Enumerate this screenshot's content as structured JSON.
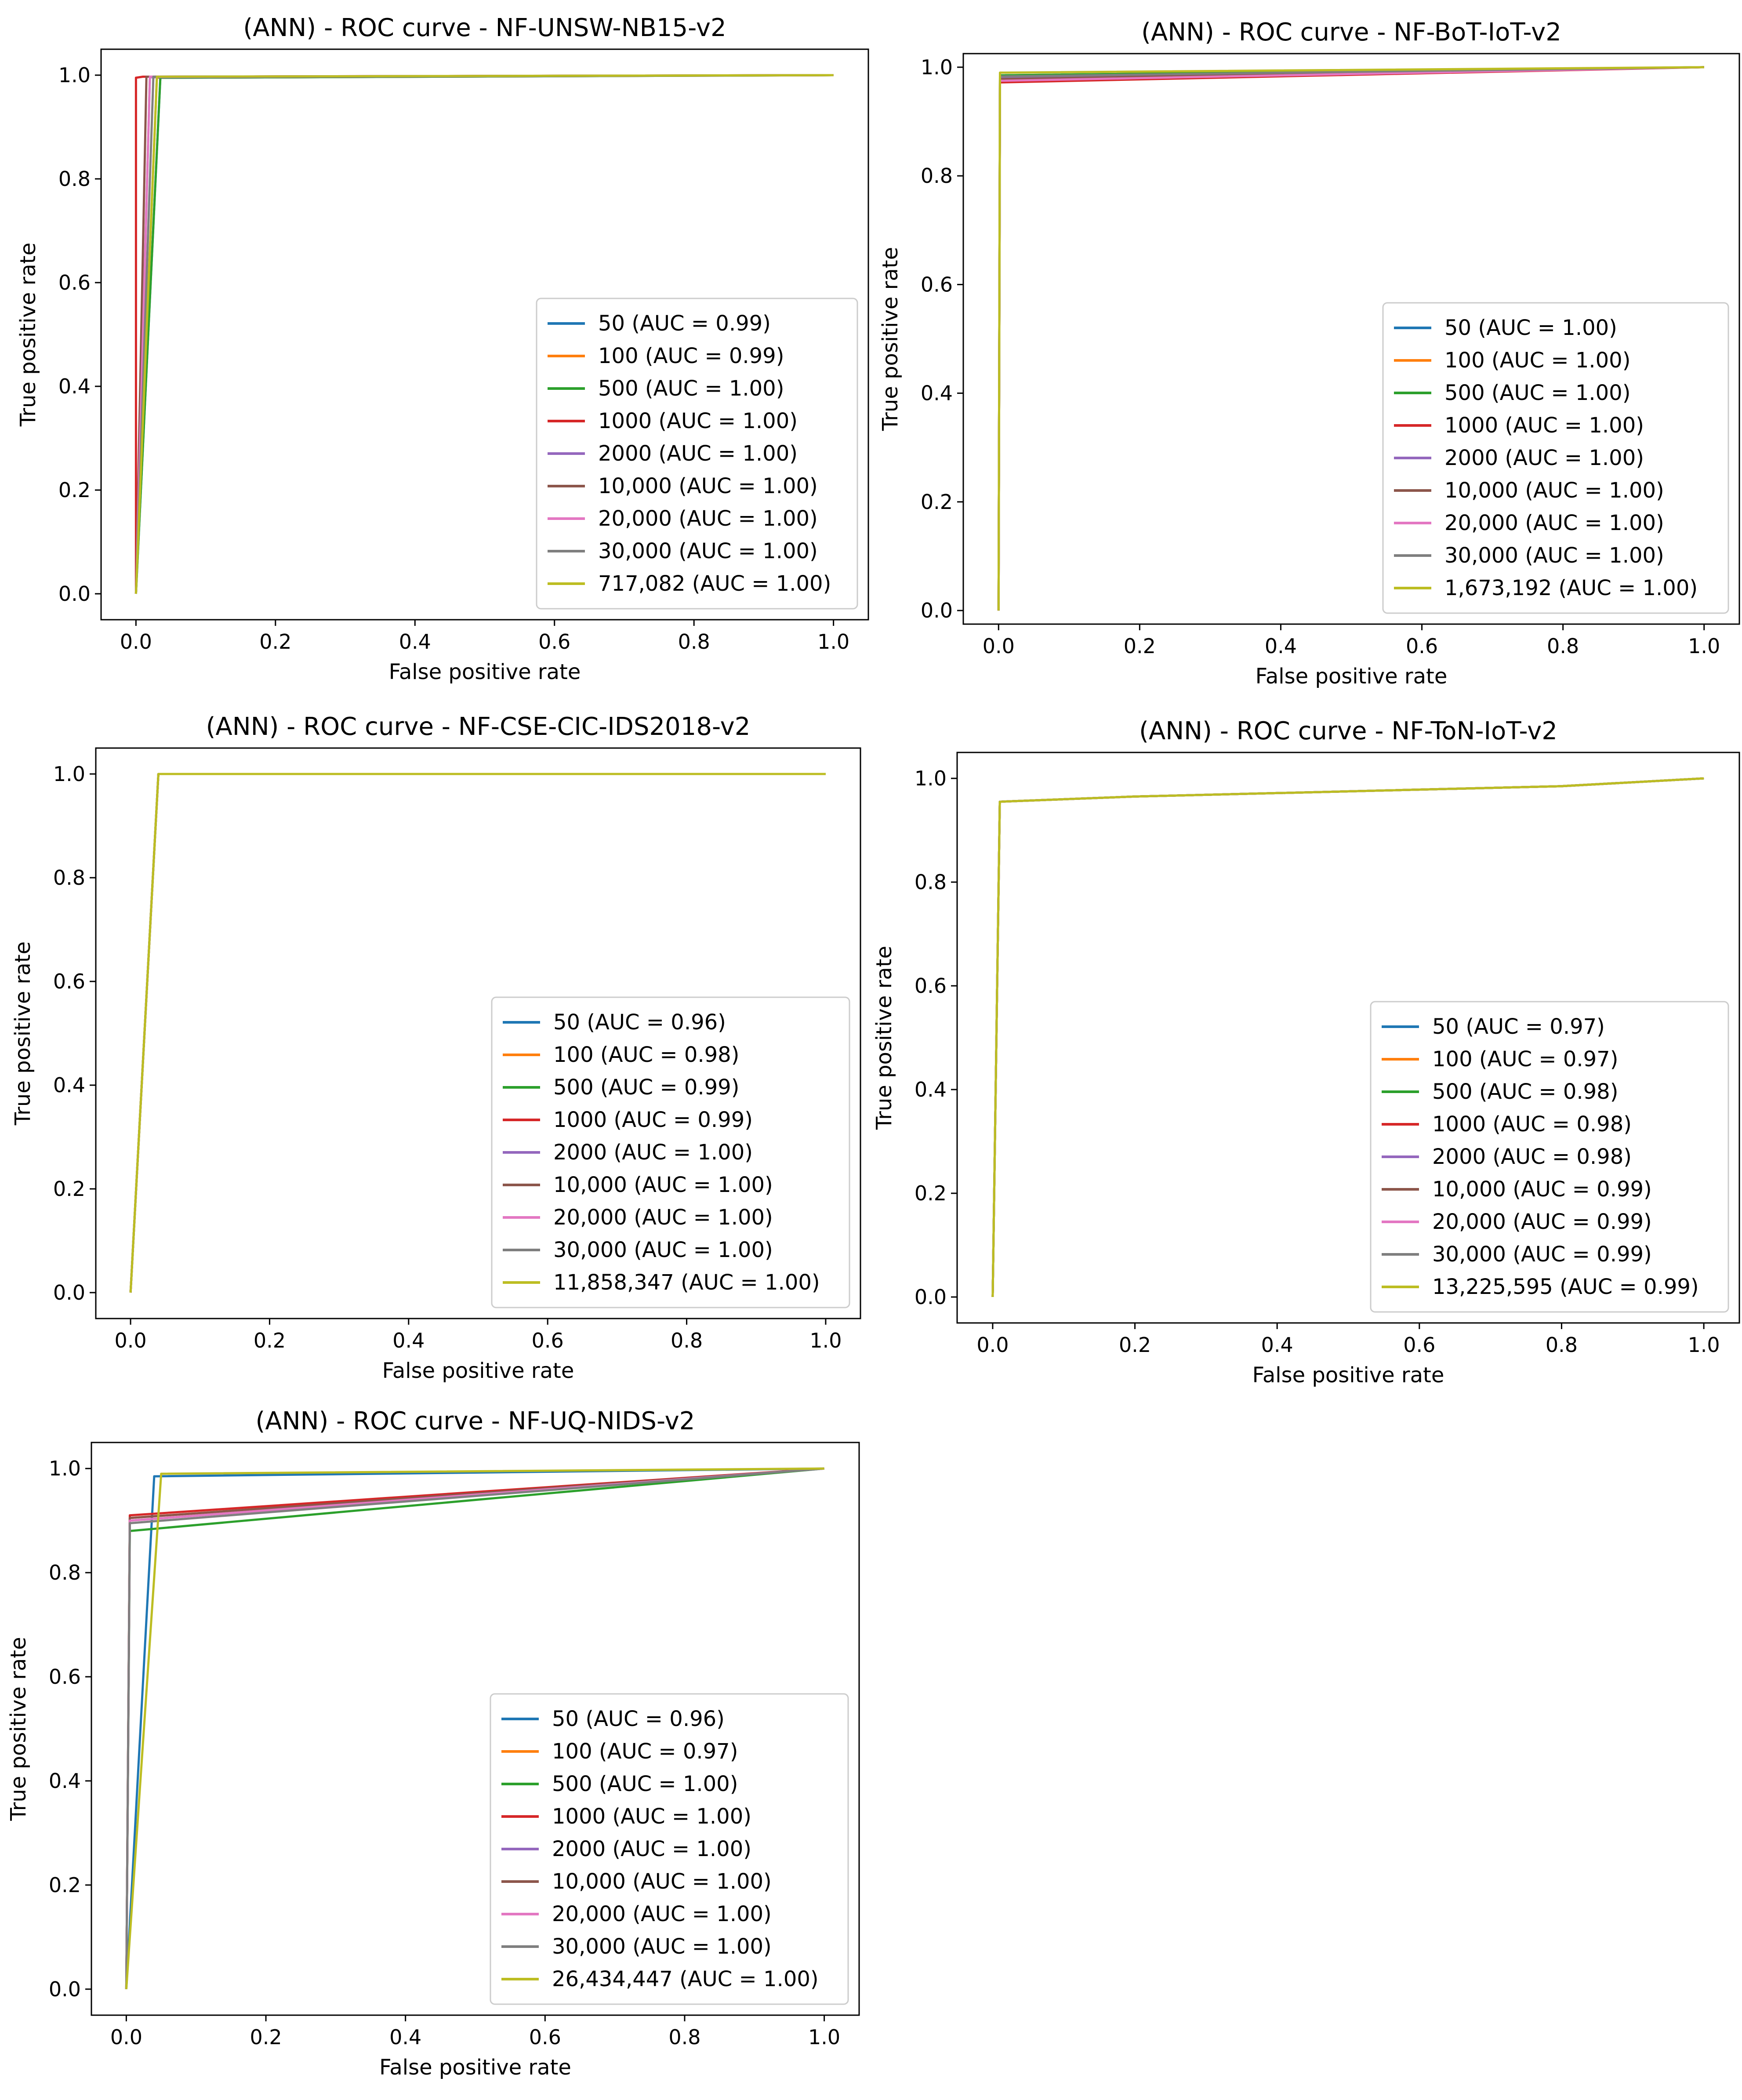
{
  "series_colors": [
    "#1f77b4",
    "#ff7f0e",
    "#2ca02c",
    "#d62728",
    "#9467bd",
    "#8c564b",
    "#e377c2",
    "#7f7f7f",
    "#bcbd22"
  ],
  "chart_data": [
    {
      "type": "line",
      "title": "(ANN) - ROC curve - NF-UNSW-NB15-v2",
      "xlabel": "False positive rate",
      "ylabel": "True positive rate",
      "xlim": [
        -0.05,
        1.05
      ],
      "ylim": [
        -0.05,
        1.05
      ],
      "xticks": [
        "0.0",
        "0.2",
        "0.4",
        "0.6",
        "0.8",
        "1.0"
      ],
      "yticks": [
        "0.0",
        "0.2",
        "0.4",
        "0.6",
        "0.8",
        "1.0"
      ],
      "legend_position": "lower-right",
      "series": [
        {
          "name": "50 (AUC = 0.99)",
          "x": [
            0,
            0.035,
            1.0
          ],
          "y": [
            0,
            0.995,
            1.0
          ]
        },
        {
          "name": "100 (AUC = 0.99)",
          "x": [
            0,
            0.03,
            1.0
          ],
          "y": [
            0,
            0.995,
            1.0
          ]
        },
        {
          "name": "500 (AUC = 1.00)",
          "x": [
            0,
            0.035,
            1.0
          ],
          "y": [
            0,
            0.995,
            1.0
          ]
        },
        {
          "name": "1000 (AUC = 1.00)",
          "x": [
            0,
            0.0,
            0.01,
            1.0
          ],
          "y": [
            0,
            0.995,
            0.997,
            1.0
          ]
        },
        {
          "name": "2000 (AUC = 1.00)",
          "x": [
            0,
            0.02,
            1.0
          ],
          "y": [
            0,
            0.996,
            1.0
          ]
        },
        {
          "name": "10,000 (AUC = 1.00)",
          "x": [
            0,
            0.015,
            1.0
          ],
          "y": [
            0,
            0.997,
            1.0
          ]
        },
        {
          "name": "20,000 (AUC = 1.00)",
          "x": [
            0,
            0.02,
            1.0
          ],
          "y": [
            0,
            0.997,
            1.0
          ]
        },
        {
          "name": "30,000 (AUC = 1.00)",
          "x": [
            0,
            0.025,
            1.0
          ],
          "y": [
            0,
            0.997,
            1.0
          ]
        },
        {
          "name": "717,082 (AUC = 1.00)",
          "x": [
            0,
            0.03,
            1.0
          ],
          "y": [
            0,
            0.997,
            1.0
          ]
        }
      ]
    },
    {
      "type": "line",
      "title": "(ANN) - ROC curve - NF-BoT-IoT-v2",
      "xlabel": "False positive rate",
      "ylabel": "True positive rate",
      "xlim": [
        -0.05,
        1.05
      ],
      "ylim": [
        -0.025,
        1.025
      ],
      "xticks": [
        "0.0",
        "0.2",
        "0.4",
        "0.6",
        "0.8",
        "1.0"
      ],
      "yticks": [
        "0.0",
        "0.2",
        "0.4",
        "0.6",
        "0.8",
        "1.0"
      ],
      "legend_position": "lower-right",
      "series": [
        {
          "name": "50 (AUC = 1.00)",
          "x": [
            0,
            0.002,
            1.0
          ],
          "y": [
            0,
            0.985,
            1.0
          ]
        },
        {
          "name": "100 (AUC = 1.00)",
          "x": [
            0,
            0.002,
            1.0
          ],
          "y": [
            0,
            0.98,
            1.0
          ]
        },
        {
          "name": "500 (AUC = 1.00)",
          "x": [
            0,
            0.002,
            1.0
          ],
          "y": [
            0,
            0.985,
            1.0
          ]
        },
        {
          "name": "1000 (AUC = 1.00)",
          "x": [
            0,
            0.002,
            1.0
          ],
          "y": [
            0,
            0.972,
            1.0
          ]
        },
        {
          "name": "2000 (AUC = 1.00)",
          "x": [
            0,
            0.002,
            1.0
          ],
          "y": [
            0,
            0.982,
            1.0
          ]
        },
        {
          "name": "10,000 (AUC = 1.00)",
          "x": [
            0,
            0.002,
            1.0
          ],
          "y": [
            0,
            0.978,
            1.0
          ]
        },
        {
          "name": "20,000 (AUC = 1.00)",
          "x": [
            0,
            0.002,
            1.0
          ],
          "y": [
            0,
            0.975,
            1.0
          ]
        },
        {
          "name": "30,000 (AUC = 1.00)",
          "x": [
            0,
            0.002,
            1.0
          ],
          "y": [
            0,
            0.983,
            1.0
          ]
        },
        {
          "name": "1,673,192 (AUC = 1.00)",
          "x": [
            0,
            0.002,
            1.0
          ],
          "y": [
            0,
            0.99,
            1.0
          ]
        }
      ]
    },
    {
      "type": "line",
      "title": "(ANN) - ROC curve - NF-CSE-CIC-IDS2018-v2",
      "xlabel": "False positive rate",
      "ylabel": "True positive rate",
      "xlim": [
        -0.05,
        1.05
      ],
      "ylim": [
        -0.05,
        1.05
      ],
      "xticks": [
        "0.0",
        "0.2",
        "0.4",
        "0.6",
        "0.8",
        "1.0"
      ],
      "yticks": [
        "0.0",
        "0.2",
        "0.4",
        "0.6",
        "0.8",
        "1.0"
      ],
      "legend_position": "lower-right",
      "series": [
        {
          "name": "50 (AUC = 0.96)",
          "x": [
            0,
            0.04,
            1.0
          ],
          "y": [
            0,
            1.0,
            1.0
          ]
        },
        {
          "name": "100 (AUC = 0.98)",
          "x": [
            0,
            0.04,
            1.0
          ],
          "y": [
            0,
            1.0,
            1.0
          ]
        },
        {
          "name": "500 (AUC = 0.99)",
          "x": [
            0,
            0.04,
            1.0
          ],
          "y": [
            0,
            1.0,
            1.0
          ]
        },
        {
          "name": "1000 (AUC = 0.99)",
          "x": [
            0,
            0.04,
            1.0
          ],
          "y": [
            0,
            1.0,
            1.0
          ]
        },
        {
          "name": "2000 (AUC = 1.00)",
          "x": [
            0,
            0.04,
            1.0
          ],
          "y": [
            0,
            1.0,
            1.0
          ]
        },
        {
          "name": "10,000 (AUC = 1.00)",
          "x": [
            0,
            0.04,
            1.0
          ],
          "y": [
            0,
            1.0,
            1.0
          ]
        },
        {
          "name": "20,000 (AUC = 1.00)",
          "x": [
            0,
            0.04,
            1.0
          ],
          "y": [
            0,
            1.0,
            1.0
          ]
        },
        {
          "name": "30,000 (AUC = 1.00)",
          "x": [
            0,
            0.04,
            1.0
          ],
          "y": [
            0,
            1.0,
            1.0
          ]
        },
        {
          "name": "11,858,347 (AUC = 1.00)",
          "x": [
            0,
            0.04,
            1.0
          ],
          "y": [
            0,
            1.0,
            1.0
          ]
        }
      ]
    },
    {
      "type": "line",
      "title": "(ANN) - ROC curve - NF-ToN-IoT-v2",
      "xlabel": "False positive rate",
      "ylabel": "True positive rate",
      "xlim": [
        -0.05,
        1.05
      ],
      "ylim": [
        -0.05,
        1.05
      ],
      "xticks": [
        "0.0",
        "0.2",
        "0.4",
        "0.6",
        "0.8",
        "1.0"
      ],
      "yticks": [
        "0.0",
        "0.2",
        "0.4",
        "0.6",
        "0.8",
        "1.0"
      ],
      "legend_position": "lower-right",
      "series": [
        {
          "name": "50 (AUC = 0.97)",
          "x": [
            0,
            0.01,
            0.2,
            0.5,
            0.8,
            1.0
          ],
          "y": [
            0,
            0.955,
            0.965,
            0.975,
            0.985,
            1.0
          ]
        },
        {
          "name": "100 (AUC = 0.97)",
          "x": [
            0,
            0.01,
            0.2,
            0.5,
            0.8,
            1.0
          ],
          "y": [
            0,
            0.955,
            0.965,
            0.975,
            0.985,
            1.0
          ]
        },
        {
          "name": "500 (AUC = 0.98)",
          "x": [
            0,
            0.01,
            0.2,
            0.5,
            0.8,
            1.0
          ],
          "y": [
            0,
            0.955,
            0.965,
            0.975,
            0.985,
            1.0
          ]
        },
        {
          "name": "1000 (AUC = 0.98)",
          "x": [
            0,
            0.01,
            0.2,
            0.5,
            0.8,
            1.0
          ],
          "y": [
            0,
            0.955,
            0.965,
            0.975,
            0.985,
            1.0
          ]
        },
        {
          "name": "2000 (AUC = 0.98)",
          "x": [
            0,
            0.01,
            0.2,
            0.5,
            0.8,
            1.0
          ],
          "y": [
            0,
            0.955,
            0.965,
            0.975,
            0.985,
            1.0
          ]
        },
        {
          "name": "10,000 (AUC = 0.99)",
          "x": [
            0,
            0.01,
            0.2,
            0.5,
            0.8,
            1.0
          ],
          "y": [
            0,
            0.955,
            0.965,
            0.975,
            0.985,
            1.0
          ]
        },
        {
          "name": "20,000 (AUC = 0.99)",
          "x": [
            0,
            0.01,
            0.2,
            0.5,
            0.8,
            1.0
          ],
          "y": [
            0,
            0.955,
            0.965,
            0.975,
            0.985,
            1.0
          ]
        },
        {
          "name": "30,000 (AUC = 0.99)",
          "x": [
            0,
            0.01,
            0.2,
            0.5,
            0.8,
            1.0
          ],
          "y": [
            0,
            0.955,
            0.965,
            0.975,
            0.985,
            1.0
          ]
        },
        {
          "name": "13,225,595 (AUC = 0.99)",
          "x": [
            0,
            0.01,
            0.2,
            0.5,
            0.8,
            1.0
          ],
          "y": [
            0,
            0.955,
            0.965,
            0.975,
            0.985,
            1.0
          ]
        }
      ]
    },
    {
      "type": "line",
      "title": "(ANN) - ROC curve - NF-UQ-NIDS-v2",
      "xlabel": "False positive rate",
      "ylabel": "True positive rate",
      "xlim": [
        -0.05,
        1.05
      ],
      "ylim": [
        -0.05,
        1.05
      ],
      "xticks": [
        "0.0",
        "0.2",
        "0.4",
        "0.6",
        "0.8",
        "1.0"
      ],
      "yticks": [
        "0.0",
        "0.2",
        "0.4",
        "0.6",
        "0.8",
        "1.0"
      ],
      "legend_position": "lower-right",
      "series": [
        {
          "name": "50 (AUC = 0.96)",
          "x": [
            0,
            0.04,
            1.0
          ],
          "y": [
            0,
            0.985,
            1.0
          ]
        },
        {
          "name": "100 (AUC = 0.97)",
          "x": [
            0,
            0.005,
            1.0
          ],
          "y": [
            0,
            0.905,
            1.0
          ]
        },
        {
          "name": "500 (AUC = 1.00)",
          "x": [
            0,
            0.005,
            1.0
          ],
          "y": [
            0,
            0.88,
            1.0
          ]
        },
        {
          "name": "1000 (AUC = 1.00)",
          "x": [
            0,
            0.005,
            1.0
          ],
          "y": [
            0,
            0.91,
            1.0
          ]
        },
        {
          "name": "2000 (AUC = 1.00)",
          "x": [
            0,
            0.005,
            1.0
          ],
          "y": [
            0,
            0.9,
            1.0
          ]
        },
        {
          "name": "10,000 (AUC = 1.00)",
          "x": [
            0,
            0.005,
            1.0
          ],
          "y": [
            0,
            0.905,
            1.0
          ]
        },
        {
          "name": "20,000 (AUC = 1.00)",
          "x": [
            0,
            0.005,
            1.0
          ],
          "y": [
            0,
            0.9,
            1.0
          ]
        },
        {
          "name": "30,000 (AUC = 1.00)",
          "x": [
            0,
            0.005,
            1.0
          ],
          "y": [
            0,
            0.895,
            1.0
          ]
        },
        {
          "name": "26,434,447 (AUC = 1.00)",
          "x": [
            0,
            0.05,
            1.0
          ],
          "y": [
            0,
            0.99,
            1.0
          ]
        }
      ]
    }
  ]
}
